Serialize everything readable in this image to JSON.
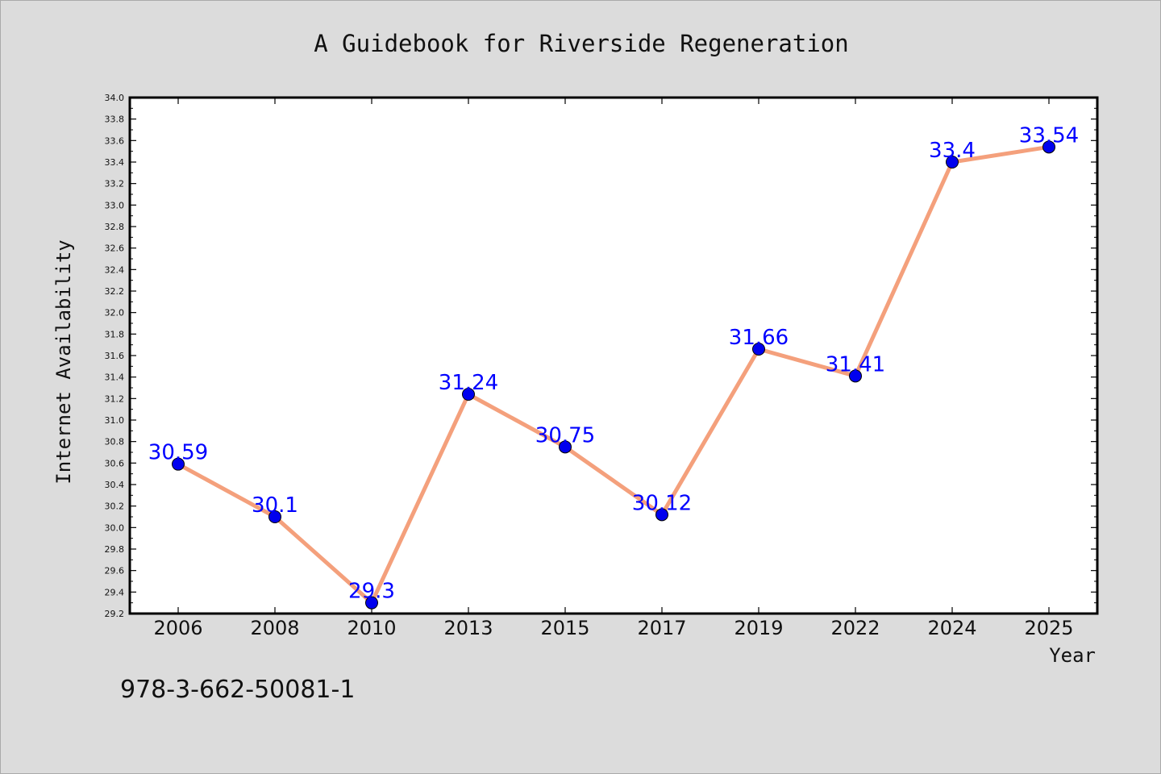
{
  "chart_data": {
    "type": "line",
    "title": "A Guidebook for Riverside Regeneration",
    "xlabel": "Year",
    "ylabel": "Internet Availability",
    "categories": [
      "2006",
      "2008",
      "2010",
      "2013",
      "2015",
      "2017",
      "2019",
      "2022",
      "2024",
      "2025"
    ],
    "series": [
      {
        "values": [
          30.59,
          30.1,
          29.3,
          31.24,
          30.75,
          30.12,
          31.66,
          31.41,
          33.4,
          33.54
        ],
        "data_labels": [
          "30.59",
          "30.1",
          "29.3",
          "31.24",
          "30.75",
          "30.12",
          "31.66",
          "31.41",
          "33.4",
          "33.54"
        ],
        "line_color": "#f4a07c",
        "marker_color": "#0000ee"
      }
    ],
    "ylim": [
      29.2,
      34.0
    ],
    "yticks": [
      "29.2",
      "29.4",
      "29.6",
      "29.8",
      "30.0",
      "30.2",
      "30.4",
      "30.6",
      "30.8",
      "31.0",
      "31.2",
      "31.4",
      "31.6",
      "31.8",
      "32.0",
      "32.2",
      "32.4",
      "32.6",
      "32.8",
      "33.0",
      "33.2",
      "33.4",
      "33.6",
      "33.8",
      "34.0"
    ],
    "grid": false,
    "legend": "none",
    "label_color": "#0000ff",
    "background_color": "#dcdcdc",
    "plot_background_color": "#ffffff"
  },
  "footer": {
    "isbn": "978-3-662-50081-1"
  }
}
